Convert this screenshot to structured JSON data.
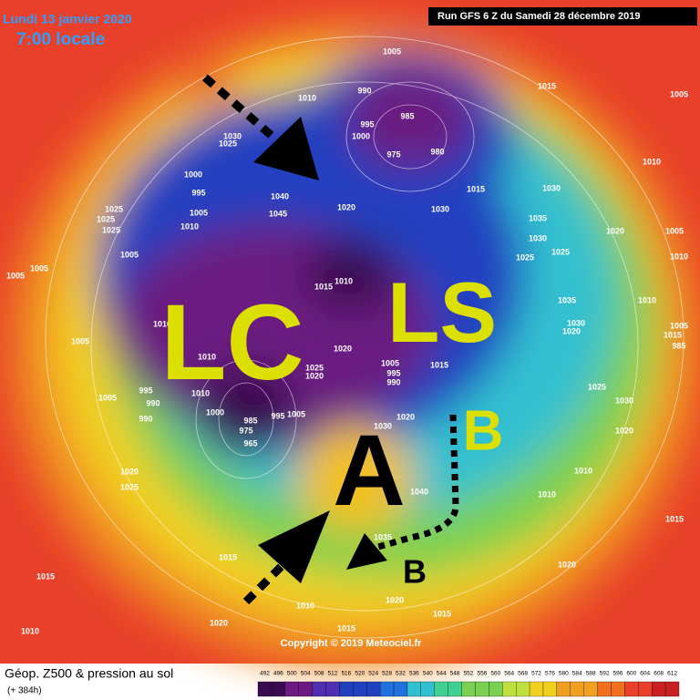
{
  "header": {
    "date": "Lundi 13 janvier 2020",
    "time": "7:00 locale",
    "run": "Run GFS 6 Z du Samedi 28 décembre 2019"
  },
  "map": {
    "annotations": [
      "LC",
      "LS",
      "A",
      "B",
      "B"
    ],
    "isobar_labels": [
      1005,
      990,
      1010,
      985,
      995,
      1000,
      980,
      975,
      1030,
      1025,
      1015,
      1005,
      1000,
      995,
      1040,
      1045,
      1020,
      1030,
      1015,
      1030,
      1010,
      1025,
      1025,
      1025,
      1005,
      1010,
      1035,
      1030,
      1020,
      1005,
      1025,
      1025,
      1010,
      1005,
      1005,
      1005,
      1015,
      1010,
      1035,
      1010,
      1010,
      1030,
      1020,
      1005,
      1015,
      985,
      1005,
      1010,
      1020,
      1025,
      1020,
      1015,
      1005,
      995,
      990,
      995,
      990,
      990,
      1005,
      1010,
      1000,
      985,
      975,
      965,
      995,
      1005,
      1020,
      1030,
      1025,
      1030,
      1020,
      1020,
      1025,
      1010,
      1040,
      1010,
      1035,
      1015,
      1015,
      1015,
      1020,
      1020,
      1010,
      1015,
      1020,
      1015,
      1010
    ],
    "copyright": "Copyright © 2019 Meteociel.fr"
  },
  "footer": {
    "title": "Géop. Z500 & pression au sol",
    "lead": "(+ 384h)",
    "colorbar": [
      492,
      496,
      500,
      504,
      508,
      512,
      516,
      520,
      524,
      528,
      532,
      536,
      540,
      544,
      548,
      552,
      556,
      560,
      564,
      568,
      572,
      576,
      580,
      584,
      588,
      592,
      596,
      600,
      604,
      608,
      612
    ]
  }
}
